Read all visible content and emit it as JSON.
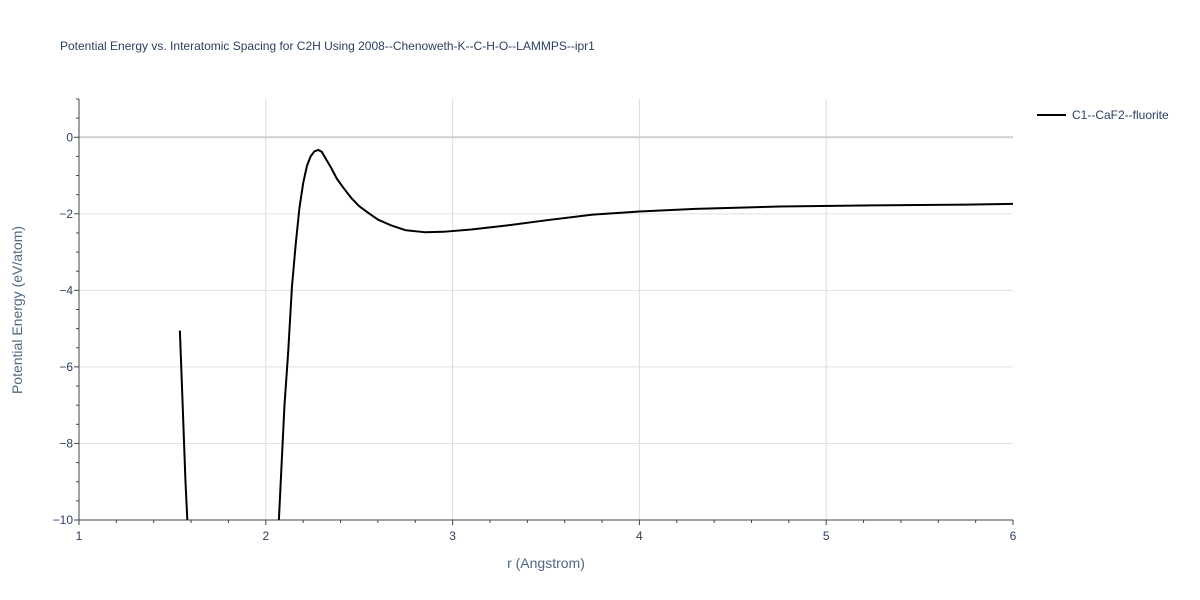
{
  "chart_data": {
    "type": "line",
    "title": "Potential Energy vs. Interatomic Spacing for C2H Using 2008--Chenoweth-K--C-H-O--LAMMPS--ipr1",
    "xlabel": "r (Angstrom)",
    "ylabel": "Potential Energy (eV/atom)",
    "xlim": [
      1,
      6
    ],
    "ylim": [
      -10,
      1
    ],
    "x_ticks": [
      "1",
      "2",
      "3",
      "4",
      "5",
      "6"
    ],
    "y_ticks": [
      "0",
      "−2",
      "−4",
      "−6",
      "−8",
      "−10"
    ],
    "x_tick_values": [
      1,
      2,
      3,
      4,
      5,
      6
    ],
    "y_tick_values": [
      0,
      -2,
      -4,
      -6,
      -8,
      -10
    ],
    "grid": true,
    "legend_position": "top-right",
    "line_color": "#000000",
    "series": [
      {
        "name": "C1--CaF2--fluorite",
        "segments": [
          [
            [
              1.54,
              -5.05
            ],
            [
              1.555,
              -7.0
            ],
            [
              1.57,
              -9.0
            ],
            [
              1.58,
              -10.0
            ]
          ],
          [
            [
              2.07,
              -10.0
            ],
            [
              2.08,
              -9.0
            ],
            [
              2.1,
              -7.0
            ],
            [
              2.12,
              -5.6
            ],
            [
              2.14,
              -3.9
            ],
            [
              2.16,
              -2.8
            ],
            [
              2.18,
              -1.85
            ],
            [
              2.2,
              -1.2
            ],
            [
              2.22,
              -0.75
            ],
            [
              2.24,
              -0.5
            ],
            [
              2.26,
              -0.37
            ],
            [
              2.28,
              -0.33
            ],
            [
              2.3,
              -0.38
            ],
            [
              2.32,
              -0.55
            ],
            [
              2.35,
              -0.8
            ],
            [
              2.38,
              -1.08
            ],
            [
              2.42,
              -1.35
            ],
            [
              2.46,
              -1.6
            ],
            [
              2.5,
              -1.8
            ],
            [
              2.55,
              -1.98
            ],
            [
              2.6,
              -2.15
            ],
            [
              2.67,
              -2.3
            ],
            [
              2.75,
              -2.43
            ],
            [
              2.85,
              -2.48
            ],
            [
              2.95,
              -2.47
            ],
            [
              3.1,
              -2.41
            ],
            [
              3.3,
              -2.3
            ],
            [
              3.5,
              -2.17
            ],
            [
              3.75,
              -2.02
            ],
            [
              4.0,
              -1.94
            ],
            [
              4.3,
              -1.87
            ],
            [
              4.75,
              -1.81
            ],
            [
              5.25,
              -1.78
            ],
            [
              5.75,
              -1.76
            ],
            [
              6.0,
              -1.74
            ]
          ]
        ]
      }
    ]
  }
}
